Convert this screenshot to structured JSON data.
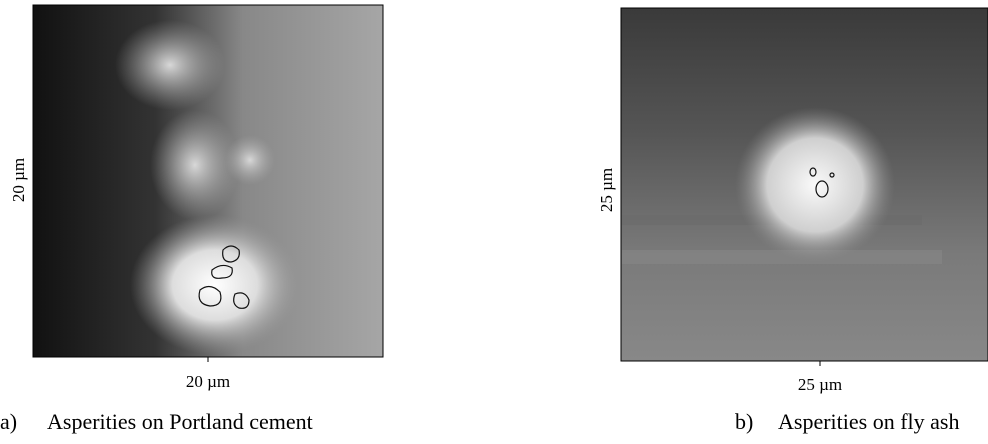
{
  "figure": {
    "panels": [
      {
        "label": "a)",
        "caption": "Asperities on Portland cement",
        "x_label": "20 µm",
        "y_label": "20 µm"
      },
      {
        "label": "b)",
        "caption": "Asperities on fly ash",
        "x_label": "25 µm",
        "y_label": "25 µm"
      }
    ]
  }
}
